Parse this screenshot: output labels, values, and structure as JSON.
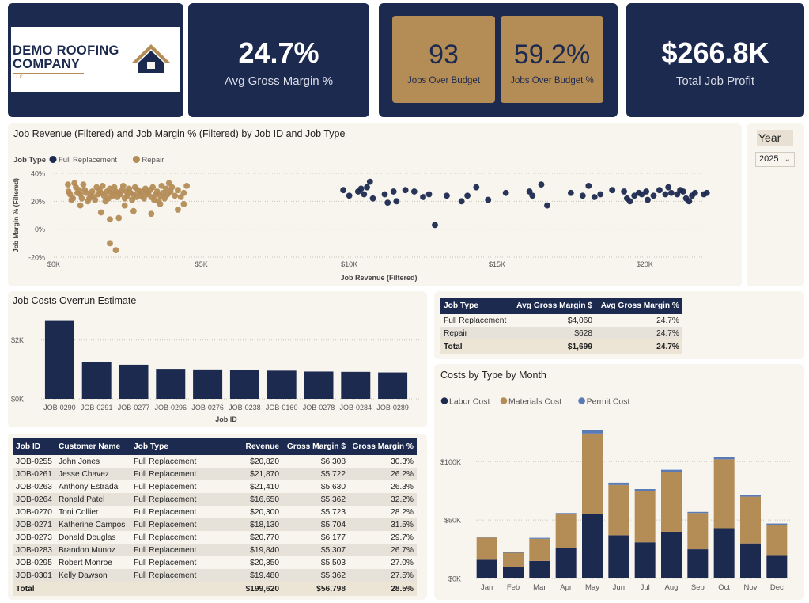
{
  "logo": {
    "line1": "DEMO ROOFING",
    "line2": "COMPANY",
    "sub": "LLC"
  },
  "kpis": {
    "avg_gross_margin": {
      "value": "24.7%",
      "label": "Avg Gross Margin %"
    },
    "jobs_over_budget": {
      "value": "93",
      "label": "Jobs Over Budget"
    },
    "jobs_over_budget_pct": {
      "value": "59.2%",
      "label": "Jobs Over Budget %"
    },
    "total_job_profit": {
      "value": "$266.8K",
      "label": "Total Job Profit"
    }
  },
  "slicer": {
    "title": "Year",
    "value": "2025"
  },
  "colors": {
    "navy": "#1c2a4f",
    "gold": "#b48c56",
    "permit": "#5a7bb5",
    "panel": "#f8f5ef"
  },
  "chart_data": [
    {
      "id": "scatter",
      "type": "scatter",
      "title": "Job Revenue (Filtered) and Job Margin % (Filtered) by Job ID and Job Type",
      "xlabel": "Job Revenue (Filtered)",
      "ylabel": "Job Margin % (Filtered)",
      "legend_title": "Job Type",
      "legend_position": "top-left",
      "xlim": [
        0,
        22000
      ],
      "ylim": [
        -20,
        40
      ],
      "xticks": [
        0,
        5000,
        10000,
        15000,
        20000
      ],
      "xtick_labels": [
        "$0K",
        "$5K",
        "$10K",
        "$15K",
        "$20K"
      ],
      "yticks": [
        40,
        20,
        0,
        -20
      ],
      "ytick_labels": [
        "40%",
        "20%",
        "0%",
        "-20%"
      ],
      "grid": true,
      "series": [
        {
          "name": "Full Replacement",
          "color": "#1c2a4f",
          "points": [
            [
              9800,
              28
            ],
            [
              10000,
              24
            ],
            [
              10300,
              27
            ],
            [
              10400,
              29
            ],
            [
              10500,
              25
            ],
            [
              10600,
              30
            ],
            [
              10700,
              34
            ],
            [
              10800,
              22
            ],
            [
              11200,
              25
            ],
            [
              11300,
              19
            ],
            [
              11500,
              27
            ],
            [
              11600,
              20
            ],
            [
              11900,
              28
            ],
            [
              12200,
              27
            ],
            [
              12500,
              23
            ],
            [
              12700,
              25
            ],
            [
              12900,
              3
            ],
            [
              13300,
              24
            ],
            [
              13800,
              20
            ],
            [
              14000,
              24
            ],
            [
              14300,
              30
            ],
            [
              14700,
              21
            ],
            [
              15300,
              26
            ],
            [
              16100,
              27
            ],
            [
              16200,
              24
            ],
            [
              16500,
              32
            ],
            [
              16700,
              17
            ],
            [
              17500,
              26
            ],
            [
              17900,
              24
            ],
            [
              18100,
              31
            ],
            [
              18300,
              23
            ],
            [
              18500,
              25
            ],
            [
              18900,
              28
            ],
            [
              19300,
              27
            ],
            [
              19400,
              22
            ],
            [
              19500,
              20
            ],
            [
              19650,
              24
            ],
            [
              19800,
              26
            ],
            [
              19900,
              25
            ],
            [
              20050,
              27
            ],
            [
              20100,
              21
            ],
            [
              20300,
              24
            ],
            [
              20500,
              28
            ],
            [
              20700,
              25
            ],
            [
              20800,
              30
            ],
            [
              20900,
              26
            ],
            [
              21100,
              25
            ],
            [
              21200,
              28
            ],
            [
              21300,
              27
            ],
            [
              21400,
              22
            ],
            [
              21500,
              20
            ],
            [
              21600,
              24
            ],
            [
              21700,
              26
            ],
            [
              22000,
              25
            ],
            [
              22100,
              26
            ],
            [
              22300,
              26
            ],
            [
              22500,
              22
            ],
            [
              22600,
              23
            ]
          ]
        },
        {
          "name": "Repair",
          "color": "#b48c56",
          "points": [
            [
              480,
              32
            ],
            [
              500,
              27
            ],
            [
              550,
              25
            ],
            [
              600,
              21
            ],
            [
              650,
              22
            ],
            [
              700,
              33
            ],
            [
              750,
              30
            ],
            [
              800,
              26
            ],
            [
              850,
              28
            ],
            [
              900,
              25
            ],
            [
              950,
              22
            ],
            [
              1000,
              32
            ],
            [
              1050,
              28
            ],
            [
              1100,
              26
            ],
            [
              1150,
              20
            ],
            [
              1200,
              22
            ],
            [
              1250,
              24
            ],
            [
              1300,
              27
            ],
            [
              1350,
              23
            ],
            [
              1400,
              21
            ],
            [
              1450,
              30
            ],
            [
              1500,
              25
            ],
            [
              1550,
              28
            ],
            [
              1600,
              26
            ],
            [
              1650,
              31
            ],
            [
              1700,
              24
            ],
            [
              1750,
              20
            ],
            [
              1800,
              27
            ],
            [
              1850,
              22
            ],
            [
              1900,
              29
            ],
            [
              1950,
              26
            ],
            [
              2000,
              24
            ],
            [
              2050,
              30
            ],
            [
              2100,
              27
            ],
            [
              2150,
              23
            ],
            [
              2200,
              26
            ],
            [
              2250,
              25
            ],
            [
              2300,
              28
            ],
            [
              2350,
              31
            ],
            [
              2400,
              22
            ],
            [
              2450,
              27
            ],
            [
              2500,
              24
            ],
            [
              2550,
              29
            ],
            [
              2600,
              26
            ],
            [
              2650,
              21
            ],
            [
              2700,
              25
            ],
            [
              2750,
              30
            ],
            [
              2800,
              23
            ],
            [
              2850,
              28
            ],
            [
              2900,
              26
            ],
            [
              2950,
              24
            ],
            [
              3000,
              27
            ],
            [
              3050,
              22
            ],
            [
              3100,
              29
            ],
            [
              3150,
              25
            ],
            [
              3200,
              26
            ],
            [
              3250,
              28
            ],
            [
              3300,
              23
            ],
            [
              3350,
              30
            ],
            [
              3400,
              21
            ],
            [
              3450,
              25
            ],
            [
              3500,
              27
            ],
            [
              3550,
              20
            ],
            [
              3600,
              24
            ],
            [
              3650,
              31
            ],
            [
              3700,
              26
            ],
            [
              3750,
              22
            ],
            [
              3800,
              29
            ],
            [
              3850,
              25
            ],
            [
              3900,
              33
            ],
            [
              3950,
              27
            ],
            [
              4000,
              30
            ],
            [
              4100,
              24
            ],
            [
              4200,
              28
            ],
            [
              4300,
              23
            ],
            [
              4400,
              26
            ],
            [
              4500,
              31
            ],
            [
              900,
              17
            ],
            [
              1600,
              12
            ],
            [
              1900,
              7
            ],
            [
              2200,
              8
            ],
            [
              2400,
              17
            ],
            [
              2700,
              13
            ],
            [
              3300,
              11
            ],
            [
              4400,
              18
            ],
            [
              1900,
              -10
            ],
            [
              2100,
              -15
            ],
            [
              4200,
              14
            ],
            [
              3600,
              18
            ]
          ]
        }
      ]
    },
    {
      "id": "overrun",
      "type": "bar",
      "title": "Job Costs Overrun Estimate",
      "xlabel": "Job ID",
      "ylabel": "",
      "categories": [
        "JOB-0290",
        "JOB-0291",
        "JOB-0277",
        "JOB-0296",
        "JOB-0276",
        "JOB-0238",
        "JOB-0160",
        "JOB-0278",
        "JOB-0284",
        "JOB-0289"
      ],
      "values": [
        2650,
        1250,
        1160,
        1020,
        1000,
        970,
        960,
        930,
        920,
        900
      ],
      "ylim": [
        0,
        2800
      ],
      "yticks": [
        0,
        2000
      ],
      "ytick_labels": [
        "$0K",
        "$2K"
      ],
      "grid": true
    },
    {
      "id": "costs",
      "type": "bar",
      "stacked": true,
      "title": "Costs by Type by Month",
      "legend_position": "top-left",
      "categories": [
        "Jan",
        "Feb",
        "Mar",
        "Apr",
        "May",
        "Jun",
        "Jul",
        "Aug",
        "Sep",
        "Oct",
        "Nov",
        "Dec"
      ],
      "ylim": [
        0,
        130000
      ],
      "yticks": [
        0,
        50000,
        100000
      ],
      "ytick_labels": [
        "$0K",
        "$50K",
        "$100K"
      ],
      "grid": true,
      "series": [
        {
          "name": "Labor Cost",
          "color": "#1c2a4f",
          "values": [
            16000,
            10000,
            15000,
            26000,
            55000,
            37000,
            31000,
            40000,
            25000,
            43000,
            30000,
            20000
          ]
        },
        {
          "name": "Materials Cost",
          "color": "#b48c56",
          "values": [
            19000,
            12000,
            19000,
            29000,
            69000,
            43000,
            44000,
            51000,
            31000,
            59000,
            40000,
            26000
          ]
        },
        {
          "name": "Permit Cost",
          "color": "#5a7bb5",
          "values": [
            800,
            500,
            800,
            1000,
            3000,
            2000,
            1500,
            2000,
            1000,
            1800,
            1500,
            1000
          ]
        }
      ]
    }
  ],
  "margin_table": {
    "headers": [
      "Job Type",
      "Avg Gross Margin $",
      "Avg Gross Margin %"
    ],
    "rows": [
      [
        "Full Replacement",
        "$4,060",
        "24.7%"
      ],
      [
        "Repair",
        "$628",
        "24.7%"
      ]
    ],
    "total": [
      "Total",
      "$1,699",
      "24.7%"
    ]
  },
  "jobs_table": {
    "headers": [
      "Job ID",
      "Customer Name",
      "Job Type",
      "Revenue",
      "Gross Margin $",
      "Gross Margin %"
    ],
    "rows": [
      [
        "JOB-0255",
        "John Jones",
        "Full Replacement",
        "$20,820",
        "$6,308",
        "30.3%"
      ],
      [
        "JOB-0261",
        "Jesse Chavez",
        "Full Replacement",
        "$21,870",
        "$5,722",
        "26.2%"
      ],
      [
        "JOB-0263",
        "Anthony Estrada",
        "Full Replacement",
        "$21,410",
        "$5,630",
        "26.3%"
      ],
      [
        "JOB-0264",
        "Ronald Patel",
        "Full Replacement",
        "$16,650",
        "$5,362",
        "32.2%"
      ],
      [
        "JOB-0270",
        "Toni Collier",
        "Full Replacement",
        "$20,300",
        "$5,723",
        "28.2%"
      ],
      [
        "JOB-0271",
        "Katherine Campos",
        "Full Replacement",
        "$18,130",
        "$5,704",
        "31.5%"
      ],
      [
        "JOB-0273",
        "Donald Douglas",
        "Full Replacement",
        "$20,770",
        "$6,177",
        "29.7%"
      ],
      [
        "JOB-0283",
        "Brandon Munoz",
        "Full Replacement",
        "$19,840",
        "$5,307",
        "26.7%"
      ],
      [
        "JOB-0295",
        "Robert Monroe",
        "Full Replacement",
        "$20,350",
        "$5,503",
        "27.0%"
      ],
      [
        "JOB-0301",
        "Kelly Dawson",
        "Full Replacement",
        "$19,480",
        "$5,362",
        "27.5%"
      ]
    ],
    "total": [
      "Total",
      "",
      "",
      "$199,620",
      "$56,798",
      "28.5%"
    ]
  }
}
